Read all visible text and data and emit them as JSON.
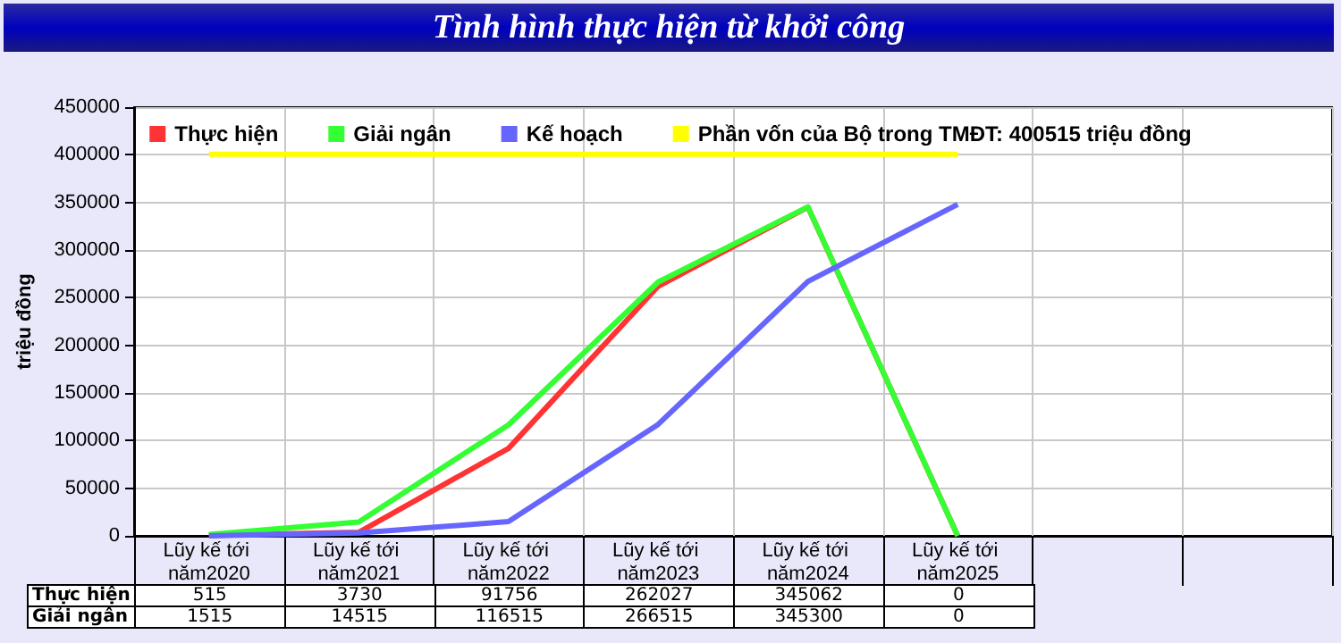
{
  "chart_data": {
    "type": "line",
    "title": "Tình hình thực hiện từ khởi công",
    "ylabel": "triệu đồng",
    "categories": [
      "Lũy kế tới năm2020",
      "Lũy kế tới năm2021",
      "Lũy kế tới năm2022",
      "Lũy kế tới năm2023",
      "Lũy kế tới năm2024",
      "Lũy kế tới năm2025"
    ],
    "series": [
      {
        "name": "Thực hiện",
        "color": "#ff3333",
        "values": [
          515,
          3730,
          91756,
          262027,
          345062,
          0
        ],
        "value_labels": [
          "515",
          "3730",
          "91756",
          "262027",
          "345062",
          "0"
        ]
      },
      {
        "name": "Giải ngân",
        "color": "#33ff33",
        "values": [
          1515,
          14515,
          116515,
          266515,
          345300,
          0
        ],
        "value_labels": [
          "1515",
          "14515",
          "116515",
          "266515",
          "345300",
          "0"
        ]
      },
      {
        "name": "Kế hoạch",
        "color": "#6666ff",
        "values": [
          0,
          3000,
          15000,
          117000,
          267000,
          348000
        ]
      }
    ],
    "ref_lines": [
      {
        "axis": "y",
        "value": 400515,
        "label": "Phần vốn của Bộ trong TMĐT: 400515 triệu đồng",
        "color": "#ffff00"
      }
    ],
    "ylim": [
      0,
      450000
    ],
    "yticks": [
      0,
      50000,
      100000,
      150000,
      200000,
      250000,
      300000,
      350000,
      400000,
      450000
    ],
    "grid": true,
    "legend": "top",
    "marker": "none",
    "line_style": "solid"
  }
}
